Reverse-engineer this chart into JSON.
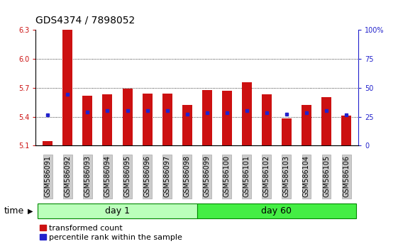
{
  "title": "GDS4374 / 7898052",
  "samples": [
    "GSM586091",
    "GSM586092",
    "GSM586093",
    "GSM586094",
    "GSM586095",
    "GSM586096",
    "GSM586097",
    "GSM586098",
    "GSM586099",
    "GSM586100",
    "GSM586101",
    "GSM586102",
    "GSM586103",
    "GSM586104",
    "GSM586105",
    "GSM586106"
  ],
  "red_values": [
    5.15,
    6.3,
    5.62,
    5.63,
    5.69,
    5.64,
    5.64,
    5.52,
    5.68,
    5.67,
    5.76,
    5.63,
    5.38,
    5.52,
    5.6,
    5.41
  ],
  "blue_values": [
    5.42,
    5.63,
    5.45,
    5.46,
    5.46,
    5.46,
    5.46,
    5.43,
    5.44,
    5.44,
    5.46,
    5.44,
    5.43,
    5.44,
    5.46,
    5.42
  ],
  "ylim_left": [
    5.1,
    6.3
  ],
  "ylim_right": [
    0,
    100
  ],
  "yticks_left": [
    5.1,
    5.4,
    5.7,
    6.0,
    6.3
  ],
  "yticks_right": [
    0,
    25,
    50,
    75,
    100
  ],
  "ytick_right_labels": [
    "0",
    "25",
    "50",
    "75",
    "100%"
  ],
  "grid_lines": [
    5.4,
    5.7,
    6.0
  ],
  "bar_bottom": 5.1,
  "bar_color": "#cc1111",
  "blue_color": "#2222cc",
  "day1_samples": 8,
  "day1_label": "day 1",
  "day60_label": "day 60",
  "day1_color": "#bbffbb",
  "day60_color": "#44ee44",
  "day_border_color": "#008800",
  "time_label": "time",
  "legend_red": "transformed count",
  "legend_blue": "percentile rank within the sample",
  "bg_color": "#ffffff",
  "tick_bg_color": "#cccccc",
  "tick_border_color": "#999999",
  "title_fontsize": 10,
  "tick_fontsize": 7,
  "bar_width": 0.5
}
